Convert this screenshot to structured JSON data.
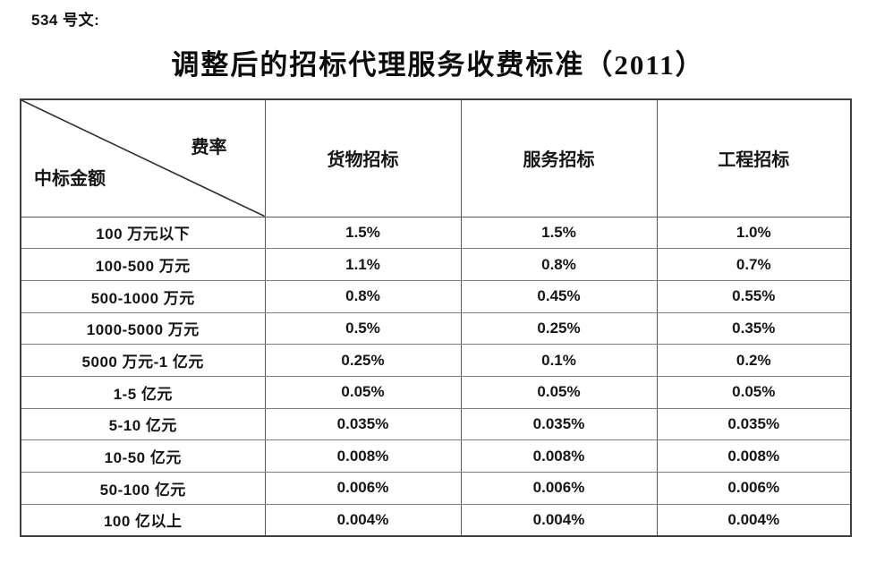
{
  "page": {
    "doc_number": "534 号文:",
    "title": "调整后的招标代理服务收费标准（2011）"
  },
  "table": {
    "corner": {
      "top_right": "费率",
      "bottom_left": "中标金额"
    },
    "columns": [
      "货物招标",
      "服务招标",
      "工程招标"
    ],
    "rows": [
      {
        "label": "100 万元以下",
        "values": [
          "1.5%",
          "1.5%",
          "1.0%"
        ]
      },
      {
        "label": "100-500 万元",
        "values": [
          "1.1%",
          "0.8%",
          "0.7%"
        ]
      },
      {
        "label": "500-1000 万元",
        "values": [
          "0.8%",
          "0.45%",
          "0.55%"
        ]
      },
      {
        "label": "1000-5000 万元",
        "values": [
          "0.5%",
          "0.25%",
          "0.35%"
        ]
      },
      {
        "label": "5000 万元-1 亿元",
        "values": [
          "0.25%",
          "0.1%",
          "0.2%"
        ]
      },
      {
        "label": "1-5 亿元",
        "values": [
          "0.05%",
          "0.05%",
          "0.05%"
        ]
      },
      {
        "label": "5-10 亿元",
        "values": [
          "0.035%",
          "0.035%",
          "0.035%"
        ]
      },
      {
        "label": "10-50 亿元",
        "values": [
          "0.008%",
          "0.008%",
          "0.008%"
        ]
      },
      {
        "label": "50-100 亿元",
        "values": [
          "0.006%",
          "0.006%",
          "0.006%"
        ]
      },
      {
        "label": "100 亿以上",
        "values": [
          "0.004%",
          "0.004%",
          "0.004%"
        ]
      }
    ]
  }
}
